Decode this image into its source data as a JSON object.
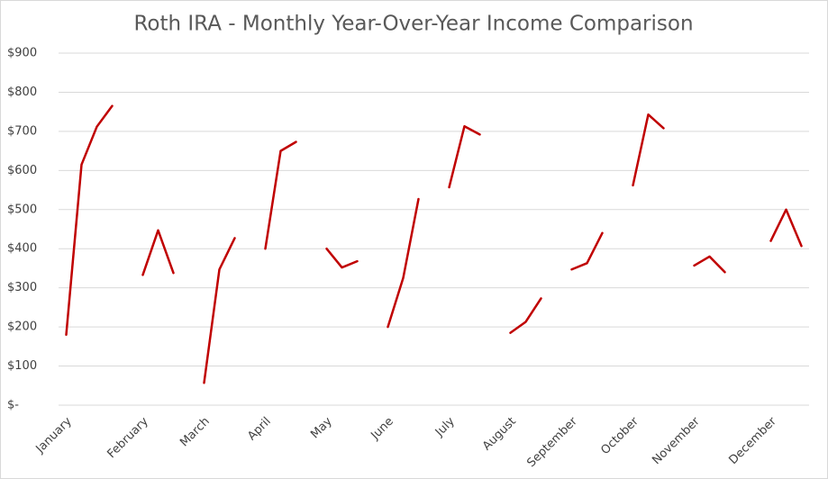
{
  "chart_data": {
    "type": "line",
    "title": "Roth IRA - Monthly Year-Over-Year Income Comparison",
    "categories": [
      "January",
      null,
      null,
      null,
      null,
      "February",
      null,
      null,
      null,
      "March",
      null,
      null,
      null,
      "April",
      null,
      null,
      null,
      "May",
      null,
      null,
      null,
      "June",
      null,
      null,
      null,
      "July",
      null,
      null,
      null,
      "August",
      null,
      null,
      null,
      "September",
      null,
      null,
      null,
      "October",
      null,
      null,
      null,
      "November",
      null,
      null,
      null,
      null,
      "December",
      null,
      null
    ],
    "values": [
      180,
      615,
      712,
      765,
      null,
      333,
      447,
      338,
      null,
      57,
      347,
      427,
      null,
      400,
      650,
      673,
      null,
      400,
      352,
      368,
      null,
      200,
      325,
      527,
      null,
      557,
      713,
      692,
      null,
      185,
      213,
      273,
      null,
      347,
      363,
      440,
      null,
      562,
      743,
      708,
      null,
      357,
      380,
      340,
      null,
      null,
      420,
      500,
      407
    ],
    "color": "#c00000",
    "ylim": [
      0,
      900
    ],
    "yticks": [
      {
        "value": 0,
        "label": "$-"
      },
      {
        "value": 100,
        "label": "$100"
      },
      {
        "value": 200,
        "label": "$200"
      },
      {
        "value": 300,
        "label": "$300"
      },
      {
        "value": 400,
        "label": "$400"
      },
      {
        "value": 500,
        "label": "$500"
      },
      {
        "value": 600,
        "label": "$600"
      },
      {
        "value": 700,
        "label": "$700"
      },
      {
        "value": 800,
        "label": "$800"
      },
      {
        "value": 900,
        "label": "$900"
      }
    ],
    "grid": true
  }
}
